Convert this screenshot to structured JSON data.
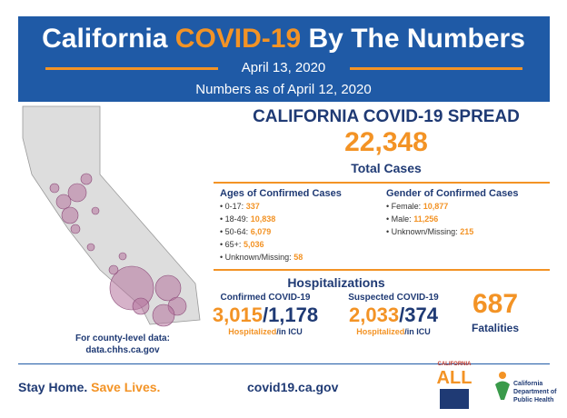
{
  "header": {
    "title_part1": "California",
    "title_part2": "COVID-19",
    "title_part3": "By The Numbers",
    "date": "April 13, 2020",
    "as_of": "Numbers as of April 12, 2020"
  },
  "spread": {
    "title": "CALIFORNIA COVID-19 SPREAD",
    "total": "22,348",
    "total_label": "Total Cases"
  },
  "ages": {
    "title": "Ages of Confirmed Cases",
    "items": [
      {
        "label": "0-17:",
        "value": "337"
      },
      {
        "label": "18-49:",
        "value": "10,838"
      },
      {
        "label": "50-64:",
        "value": "6,079"
      },
      {
        "label": "65+:",
        "value": "5,036"
      },
      {
        "label": "Unknown/Missing:",
        "value": "58"
      }
    ]
  },
  "gender": {
    "title": "Gender of Confirmed Cases",
    "items": [
      {
        "label": "Female:",
        "value": "10,877"
      },
      {
        "label": "Male:",
        "value": "11,256"
      },
      {
        "label": "Unknown/Missing:",
        "value": "215"
      }
    ]
  },
  "hospitalizations": {
    "title": "Hospitalizations",
    "groups": [
      {
        "label": "Confirmed COVID-19",
        "hospitalized": "3,015",
        "separator": "/",
        "icu": "1,178",
        "hospitalized_label": "Hospitalized",
        "icu_label": "/in ICU"
      },
      {
        "label": "Suspected COVID-19",
        "hospitalized": "2,033",
        "separator": "/",
        "icu": "374",
        "hospitalized_label": "Hospitalized",
        "icu_label": "/in ICU"
      }
    ]
  },
  "fatalities": {
    "value": "687",
    "label": "Fatalities"
  },
  "county": {
    "label": "For county-level data:",
    "url": "data.chhs.ca.gov"
  },
  "footer": {
    "slogan1": "Stay Home.",
    "slogan2": "Save Lives.",
    "website": "covid19.ca.gov",
    "logo1_top": "CALIFORNIA",
    "logo1_main": "ALL",
    "logo2": "California Department of Public Health"
  }
}
